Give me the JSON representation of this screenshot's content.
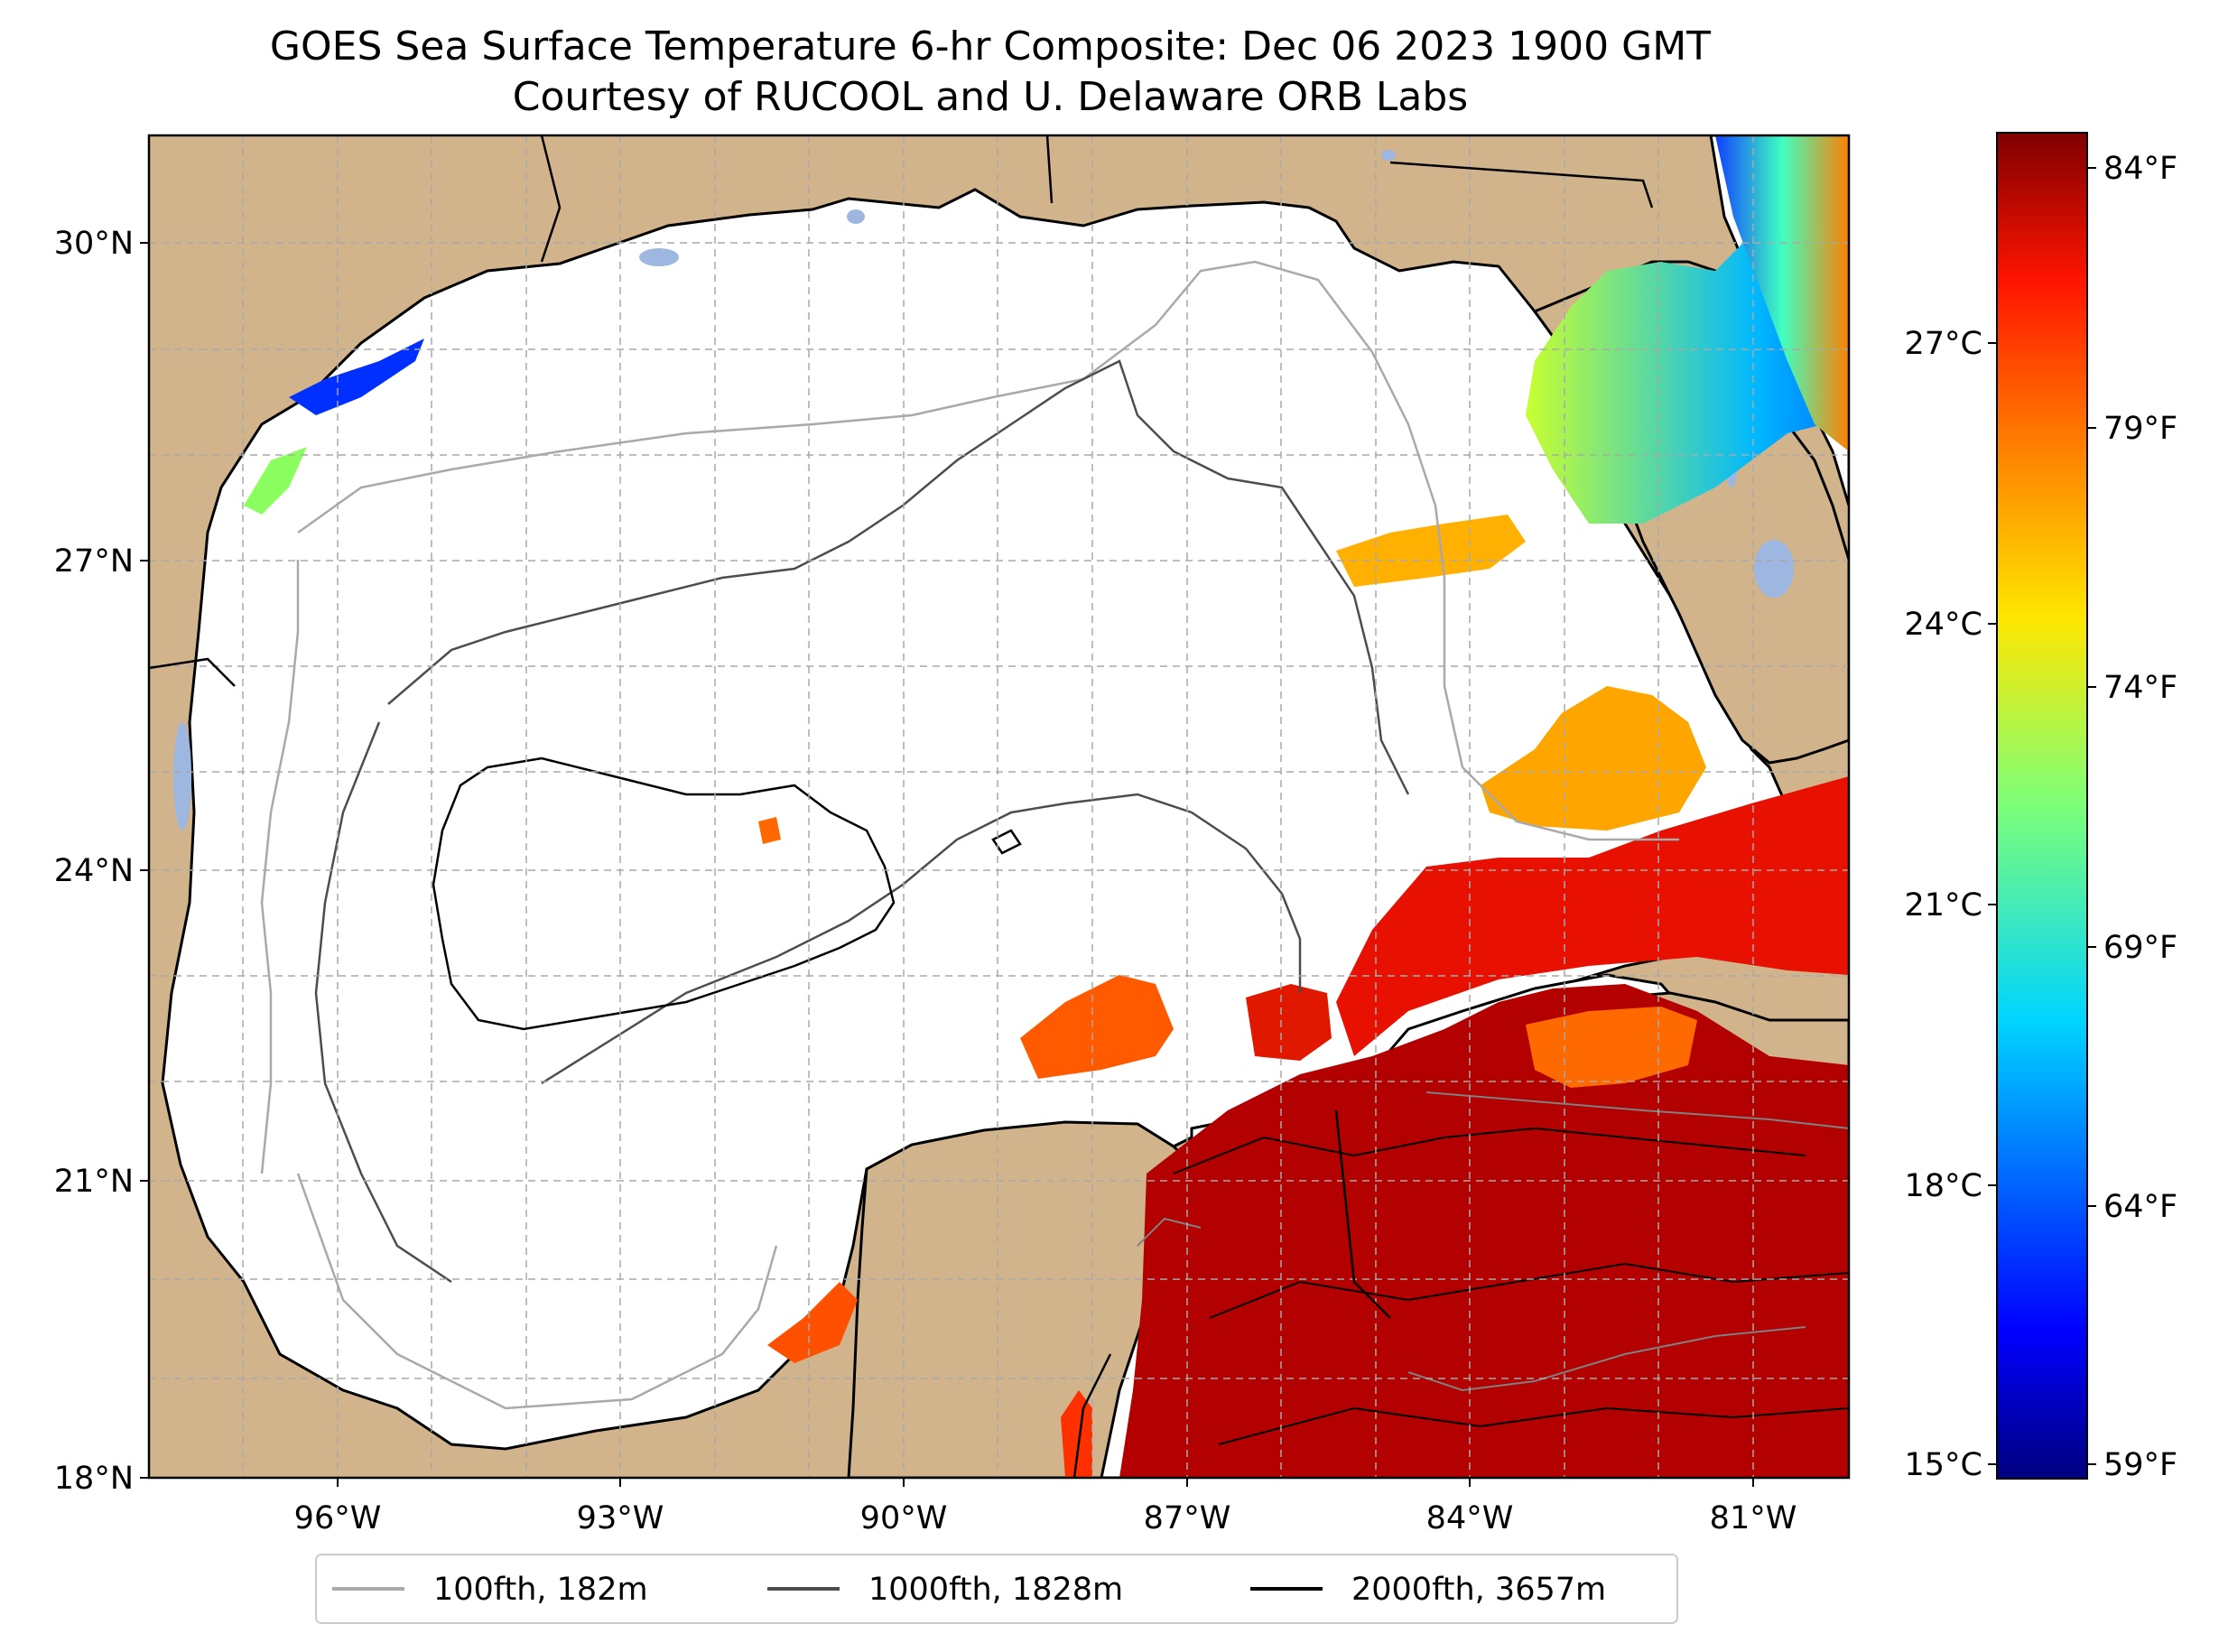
{
  "title": {
    "line1": "GOES Sea Surface Temperature 6-hr Composite: Dec 06 2023 1900 GMT",
    "line2": "Courtesy of RUCOOL and U. Delaware ORB Labs"
  },
  "map": {
    "lat_range": [
      18,
      31.5
    ],
    "lon_range": [
      -98,
      -80
    ],
    "lat_ticks": [
      {
        "value": 18,
        "label": "18°N"
      },
      {
        "value": 21,
        "label": "21°N"
      },
      {
        "value": 24,
        "label": "24°N"
      },
      {
        "value": 27,
        "label": "27°N"
      },
      {
        "value": 30,
        "label": "30°N"
      }
    ],
    "lon_ticks": [
      {
        "value": -96,
        "label": "96°W"
      },
      {
        "value": -93,
        "label": "93°W"
      },
      {
        "value": -90,
        "label": "90°W"
      },
      {
        "value": -87,
        "label": "87°W"
      },
      {
        "value": -84,
        "label": "84°W"
      },
      {
        "value": -81,
        "label": "81°W"
      }
    ],
    "grid": true,
    "colors": {
      "land": "#d2b48c",
      "ocean_no_data": "#ffffff",
      "inland_water": "#9db7e0",
      "grid": "#a9a9a9"
    }
  },
  "colorbar": {
    "celsius_ticks": [
      {
        "value": 15,
        "label": "15°C"
      },
      {
        "value": 18,
        "label": "18°C"
      },
      {
        "value": 21,
        "label": "21°C"
      },
      {
        "value": 24,
        "label": "24°C"
      },
      {
        "value": 27,
        "label": "27°C"
      }
    ],
    "fahrenheit_ticks": [
      {
        "value": 59,
        "label": "59°F"
      },
      {
        "value": 64,
        "label": "64°F"
      },
      {
        "value": 69,
        "label": "69°F"
      },
      {
        "value": 74,
        "label": "74°F"
      },
      {
        "value": 79,
        "label": "79°F"
      },
      {
        "value": 84,
        "label": "84°F"
      }
    ],
    "range_f": [
      58.5,
      84.5
    ],
    "colormap": "jet"
  },
  "legend": {
    "items": [
      {
        "label": "100fth, 182m",
        "color": "#a9a9a9"
      },
      {
        "label": "1000fth, 1828m",
        "color": "#4d4d4d"
      },
      {
        "label": "2000fth, 3657m",
        "color": "#000000"
      }
    ],
    "placement": "bottom-center"
  }
}
